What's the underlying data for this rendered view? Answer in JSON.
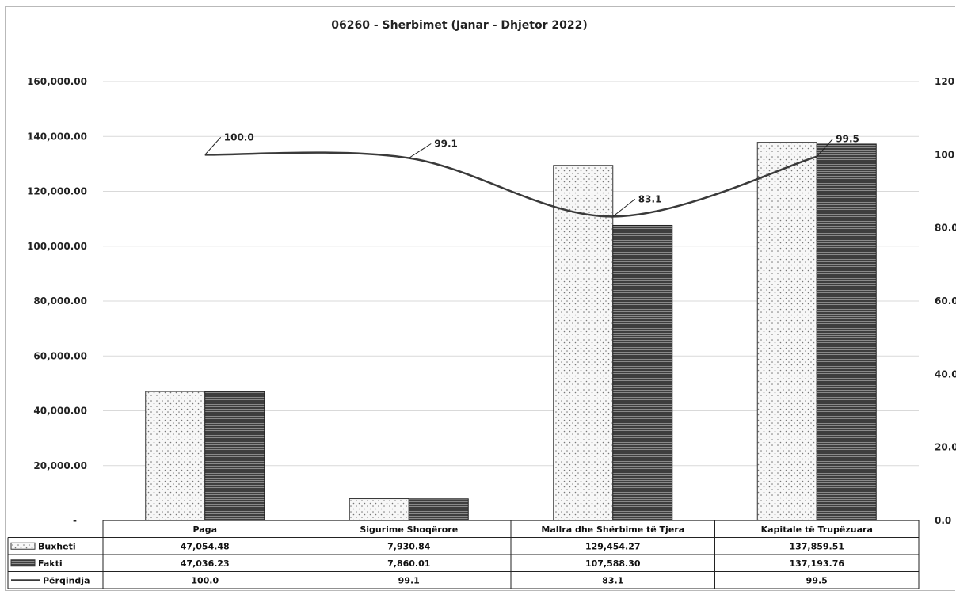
{
  "chart_data": {
    "type": "bar",
    "title": "06260 - Sherbimet (Janar - Dhjetor 2022)",
    "categories": [
      "Paga",
      "Sigurime Shoqërore",
      "Mallra dhe Shërbime të Tjera",
      "Kapitale të Trupëzuara"
    ],
    "series": [
      {
        "name": "Buxheti",
        "type": "bar",
        "axis": "left",
        "pattern": "dotted",
        "values": [
          47054.48,
          7930.84,
          129454.27,
          137859.51
        ],
        "display": [
          "47,054.48",
          "7,930.84",
          "129,454.27",
          "137,859.51"
        ]
      },
      {
        "name": "Fakti",
        "type": "bar",
        "axis": "left",
        "pattern": "striped-dark",
        "values": [
          47036.23,
          7860.01,
          107588.3,
          137193.76
        ],
        "display": [
          "47,036.23",
          "7,860.01",
          "107,588.30",
          "137,193.76"
        ]
      },
      {
        "name": "Përqindja",
        "type": "line",
        "axis": "right",
        "values": [
          100.0,
          99.1,
          83.1,
          99.5
        ],
        "display": [
          "100.0",
          "99.1",
          "83.1",
          "99.5"
        ]
      }
    ],
    "ylim": [
      0,
      160000
    ],
    "y_ticks": [
      "-",
      "20,000.00",
      "40,000.00",
      "60,000.00",
      "80,000.00",
      "100,000.00",
      "120,000.00",
      "140,000.00",
      "160,000.00"
    ],
    "y2lim": [
      0,
      120
    ],
    "y2_ticks": [
      "0.0",
      "20.0",
      "40.0",
      "60.0",
      "80.0",
      "100",
      "120"
    ],
    "grid": true,
    "data_table": true,
    "colors": {
      "buxheti_fill": "#f4f4f4",
      "fakti_fill": "#5a5a5a",
      "line": "#3a3a3a",
      "grid": "#d9d9d9"
    }
  }
}
